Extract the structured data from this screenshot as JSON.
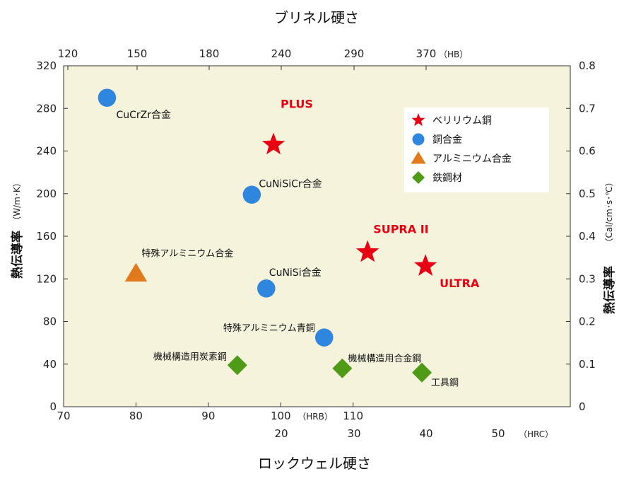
{
  "chart_data": {
    "type": "scatter",
    "title_top": "ブリネル硬さ",
    "title_bottom": "ロックウェル硬さ",
    "ylabel_left": "熱伝導率",
    "ylabel_left_unit": "（W/m･K）",
    "ylabel_right": "熱伝導率",
    "ylabel_right_unit": "（Cal/cm･s･℃）",
    "x_hrb": {
      "min": 70,
      "max": 140,
      "ticks": [
        70,
        80,
        90,
        100,
        110
      ],
      "tick_labels": [
        "70",
        "80",
        "90",
        "100",
        "110"
      ],
      "unit": "（HRB）"
    },
    "x_hrc": {
      "ticks": [
        20,
        30,
        40,
        50
      ],
      "tick_labels": [
        "20",
        "30",
        "40",
        "50"
      ],
      "unit": "（HRC）"
    },
    "x_hb": {
      "ticks": [
        120,
        150,
        180,
        240,
        290,
        370
      ],
      "tick_labels": [
        "120",
        "150",
        "180",
        "240",
        "290",
        "370"
      ],
      "unit": "（HB）"
    },
    "y_left": {
      "min": 0,
      "max": 320,
      "ticks": [
        0,
        40,
        80,
        120,
        160,
        200,
        240,
        280,
        320
      ],
      "tick_labels": [
        "0",
        "40",
        "80",
        "120",
        "160",
        "200",
        "240",
        "280",
        "320"
      ]
    },
    "y_right": {
      "min": 0,
      "max": 0.8,
      "ticks": [
        0,
        0.1,
        0.2,
        0.3,
        0.4,
        0.5,
        0.6,
        0.7,
        0.8
      ],
      "tick_labels": [
        "0",
        "0.1",
        "0.2",
        "0.3",
        "0.4",
        "0.5",
        "0.6",
        "0.7",
        "0.8"
      ]
    },
    "legend": [
      {
        "label": "ベリリウム銅",
        "marker": "star",
        "color": "#e60012"
      },
      {
        "label": "銅合金",
        "marker": "circle",
        "color": "#2e86de"
      },
      {
        "label": "アルミニウム合金",
        "marker": "triangle",
        "color": "#e07a1c"
      },
      {
        "label": "鉄鋼材",
        "marker": "diamond",
        "color": "#4f9a17"
      }
    ],
    "series": [
      {
        "name": "ベリリウム銅",
        "marker": "star",
        "color": "#e60012",
        "points": [
          {
            "x": 99,
            "y": 246,
            "label": "PLUS"
          },
          {
            "x": 112,
            "y": 145,
            "label": "SUPRA II"
          },
          {
            "x": 120,
            "y": 132,
            "label": "ULTRA"
          }
        ]
      },
      {
        "name": "銅合金",
        "marker": "circle",
        "color": "#2e86de",
        "points": [
          {
            "x": 76,
            "y": 290,
            "label": "CuCrZr合金"
          },
          {
            "x": 96,
            "y": 199,
            "label": "CuNiSiCr合金"
          },
          {
            "x": 98,
            "y": 111,
            "label": "CuNiSi合金"
          },
          {
            "x": 106,
            "y": 65,
            "label": "特殊アルミニウム青銅"
          }
        ]
      },
      {
        "name": "アルミニウム合金",
        "marker": "triangle",
        "color": "#e07a1c",
        "points": [
          {
            "x": 80,
            "y": 125,
            "label": "特殊アルミニウム合金"
          }
        ]
      },
      {
        "name": "鉄鋼材",
        "marker": "diamond",
        "color": "#4f9a17",
        "points": [
          {
            "x": 94,
            "y": 39,
            "label": "機械構造用炭素鋼"
          },
          {
            "x": 108.5,
            "y": 36,
            "label": "機械構造用合金鋼"
          },
          {
            "x": 119.5,
            "y": 32,
            "label": "工具鋼"
          }
        ]
      }
    ]
  }
}
